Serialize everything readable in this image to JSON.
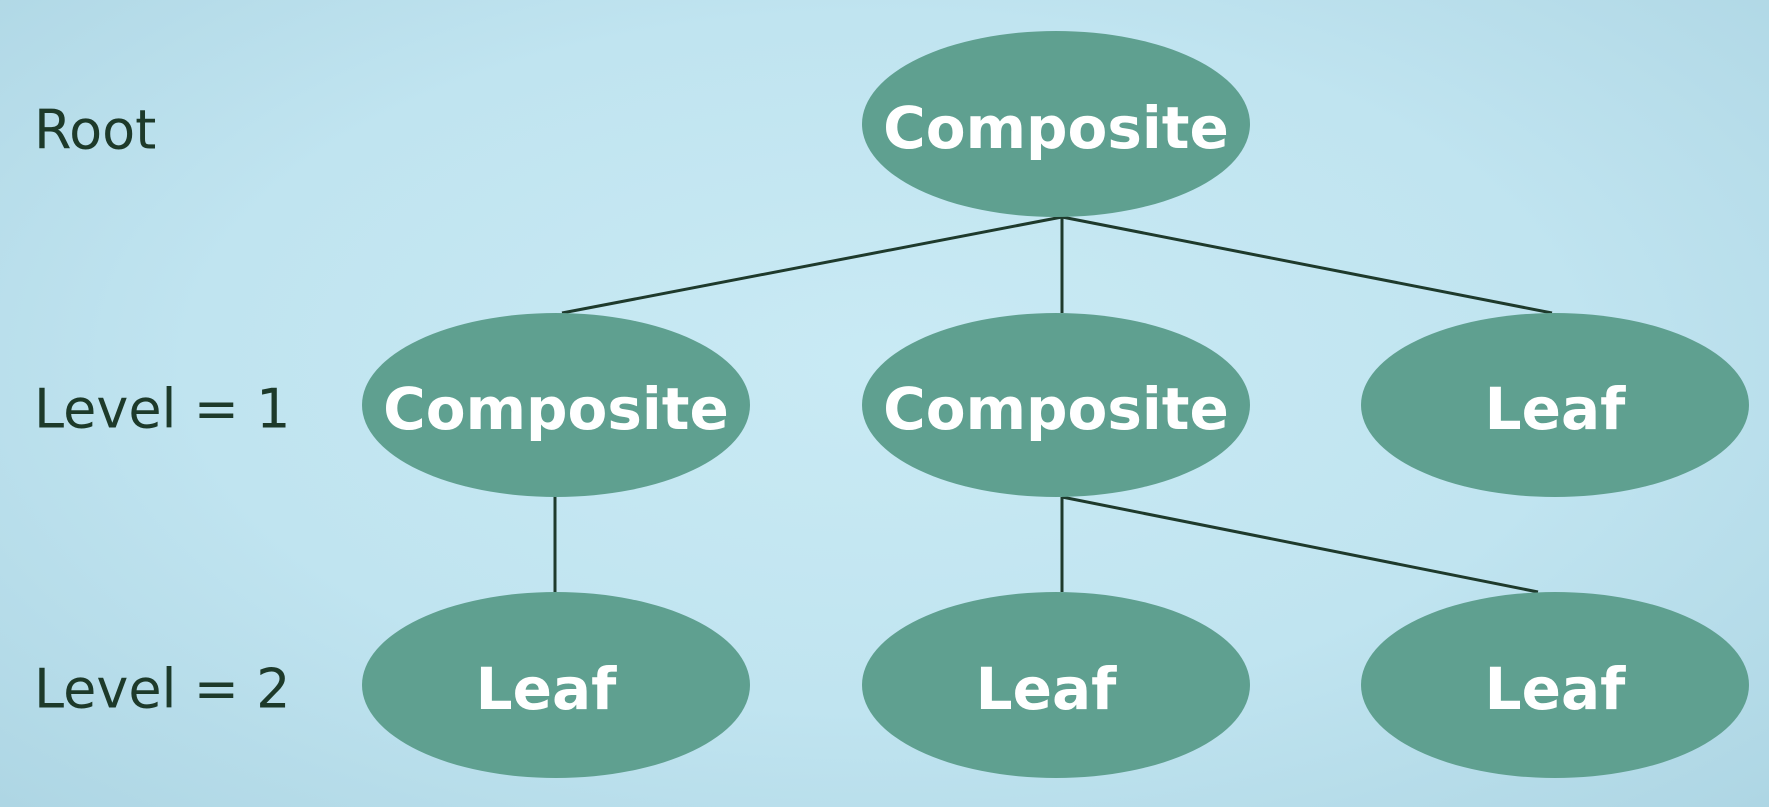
{
  "levels": [
    {
      "label": "Root"
    },
    {
      "label": "Level = 1"
    },
    {
      "label": "Level = 2"
    }
  ],
  "nodes": [
    {
      "id": "root",
      "label": "Composite",
      "level": 0
    },
    {
      "id": "l1-composite-left",
      "label": "Composite",
      "level": 1
    },
    {
      "id": "l1-composite-middle",
      "label": "Composite",
      "level": 1
    },
    {
      "id": "l1-leaf-right",
      "label": "Leaf",
      "level": 1
    },
    {
      "id": "l2-leaf-left",
      "label": "Leaf",
      "level": 2
    },
    {
      "id": "l2-leaf-middle",
      "label": "Leaf",
      "level": 2
    },
    {
      "id": "l2-leaf-right",
      "label": "Leaf",
      "level": 2
    }
  ],
  "edges": [
    {
      "from": "root",
      "to": "l1-composite-left"
    },
    {
      "from": "root",
      "to": "l1-composite-middle"
    },
    {
      "from": "root",
      "to": "l1-leaf-right"
    },
    {
      "from": "l1-composite-left",
      "to": "l2-leaf-left"
    },
    {
      "from": "l1-composite-middle",
      "to": "l2-leaf-middle"
    },
    {
      "from": "l1-composite-middle",
      "to": "l2-leaf-right"
    }
  ],
  "colors": {
    "node_fill": "#5fa090",
    "node_text": "#ffffff",
    "edge": "#1e3a2c",
    "level_text": "#1d3a2a"
  }
}
